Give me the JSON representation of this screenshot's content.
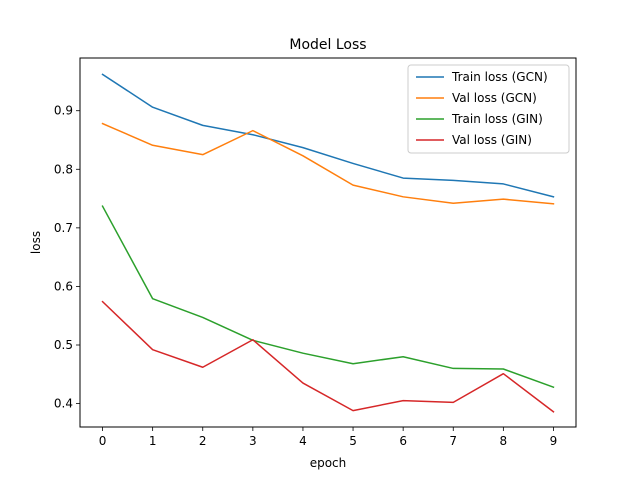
{
  "chart_data": {
    "type": "line",
    "title": "Model Loss",
    "xlabel": "epoch",
    "ylabel": "loss",
    "x": [
      0,
      1,
      2,
      3,
      4,
      5,
      6,
      7,
      8,
      9
    ],
    "xlim": [
      -0.45,
      9.45
    ],
    "ylim": [
      0.36,
      0.99
    ],
    "xticks": [
      0,
      1,
      2,
      3,
      4,
      5,
      6,
      7,
      8,
      9
    ],
    "yticks": [
      0.4,
      0.5,
      0.6,
      0.7,
      0.8,
      0.9
    ],
    "ytick_labels": [
      "0.4",
      "0.5",
      "0.6",
      "0.7",
      "0.8",
      "0.9"
    ],
    "grid": false,
    "legend_position": "top-right",
    "series": [
      {
        "name": "Train loss (GCN)",
        "color": "#1f77b4",
        "values": [
          0.962,
          0.906,
          0.875,
          0.859,
          0.837,
          0.81,
          0.785,
          0.781,
          0.775,
          0.753
        ]
      },
      {
        "name": "Val loss (GCN)",
        "color": "#ff7f0e",
        "values": [
          0.878,
          0.841,
          0.825,
          0.866,
          0.823,
          0.773,
          0.753,
          0.742,
          0.749,
          0.741
        ]
      },
      {
        "name": "Train loss (GIN)",
        "color": "#2ca02c",
        "values": [
          0.737,
          0.579,
          0.547,
          0.508,
          0.486,
          0.468,
          0.48,
          0.46,
          0.459,
          0.428
        ]
      },
      {
        "name": "Val loss (GIN)",
        "color": "#d62728",
        "values": [
          0.574,
          0.492,
          0.462,
          0.509,
          0.435,
          0.388,
          0.405,
          0.402,
          0.451,
          0.386
        ]
      }
    ]
  }
}
